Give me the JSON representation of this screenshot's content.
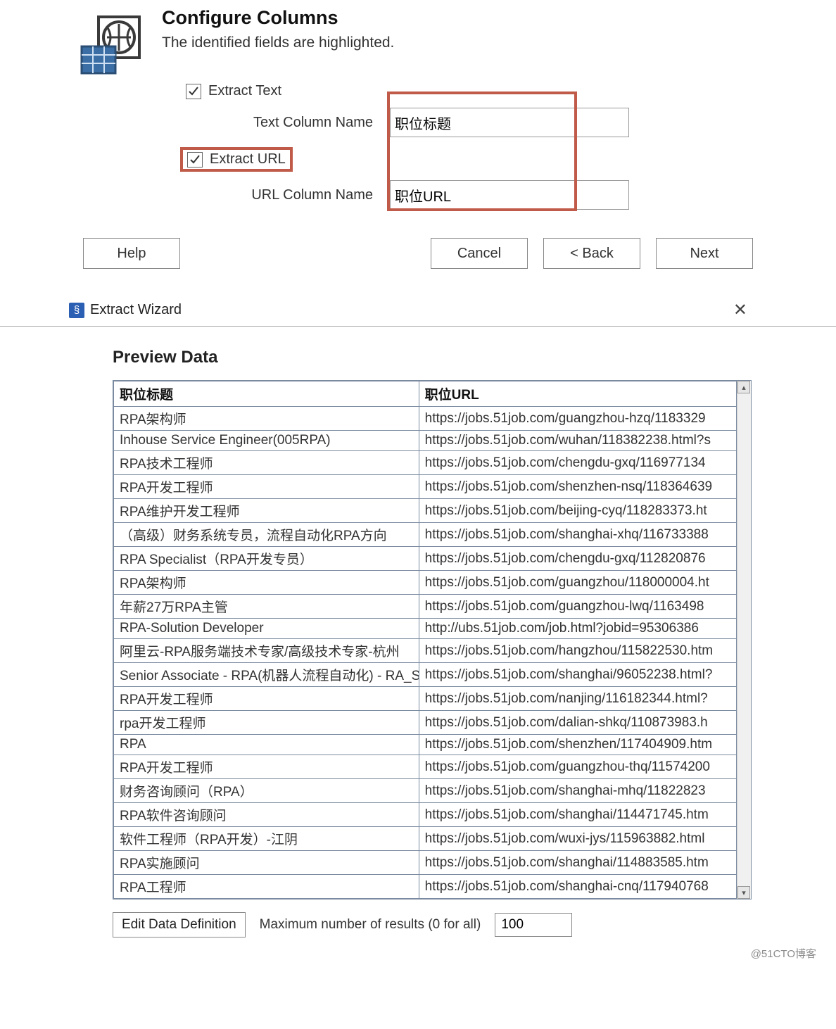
{
  "header": {
    "title": "Configure Columns",
    "subtitle": "The identified fields are highlighted."
  },
  "form": {
    "extract_text_label": "Extract Text",
    "extract_text_checked": true,
    "text_col_label": "Text Column Name",
    "text_col_value": "职位标题",
    "extract_url_label": "Extract URL",
    "extract_url_checked": true,
    "url_col_label": "URL Column Name",
    "url_col_value": "职位URL"
  },
  "buttons": {
    "help": "Help",
    "cancel": "Cancel",
    "back": "< Back",
    "next": "Next"
  },
  "wizard": {
    "title": "Extract Wizard"
  },
  "preview": {
    "heading": "Preview Data",
    "columns": [
      "职位标题",
      "职位URL"
    ],
    "rows": [
      [
        "RPA架构师",
        "https://jobs.51job.com/guangzhou-hzq/1183329"
      ],
      [
        "Inhouse Service Engineer(005RPA)",
        "https://jobs.51job.com/wuhan/118382238.html?s"
      ],
      [
        "RPA技术工程师",
        "https://jobs.51job.com/chengdu-gxq/116977134"
      ],
      [
        "RPA开发工程师",
        "https://jobs.51job.com/shenzhen-nsq/118364639"
      ],
      [
        "RPA维护开发工程师",
        "https://jobs.51job.com/beijing-cyq/118283373.ht"
      ],
      [
        "（高级）财务系统专员，流程自动化RPA方向",
        "https://jobs.51job.com/shanghai-xhq/116733388"
      ],
      [
        "RPA Specialist（RPA开发专员）",
        "https://jobs.51job.com/chengdu-gxq/112820876"
      ],
      [
        "RPA架构师",
        "https://jobs.51job.com/guangzhou/118000004.ht"
      ],
      [
        "年薪27万RPA主管",
        "https://jobs.51job.com/guangzhou-lwq/1163498"
      ],
      [
        "RPA-Solution Developer",
        "http://ubs.51job.com/job.html?jobid=95306386"
      ],
      [
        "阿里云-RPA服务端技术专家/高级技术专家-杭州",
        "https://jobs.51job.com/hangzhou/115822530.htm"
      ],
      [
        "Senior Associate - RPA(机器人流程自动化) - RA_SI",
        "https://jobs.51job.com/shanghai/96052238.html?"
      ],
      [
        "RPA开发工程师",
        "https://jobs.51job.com/nanjing/116182344.html?"
      ],
      [
        "rpa开发工程师",
        "https://jobs.51job.com/dalian-shkq/110873983.h"
      ],
      [
        "RPA",
        "https://jobs.51job.com/shenzhen/117404909.htm"
      ],
      [
        "RPA开发工程师",
        "https://jobs.51job.com/guangzhou-thq/11574200"
      ],
      [
        "财务咨询顾问（RPA）",
        "https://jobs.51job.com/shanghai-mhq/11822823"
      ],
      [
        "RPA软件咨询顾问",
        "https://jobs.51job.com/shanghai/114471745.htm"
      ],
      [
        "软件工程师（RPA开发）-江阴",
        "https://jobs.51job.com/wuxi-jys/115963882.html"
      ],
      [
        "RPA实施顾问",
        "https://jobs.51job.com/shanghai/114883585.htm"
      ],
      [
        "RPA工程师",
        "https://jobs.51job.com/shanghai-cnq/117940768"
      ]
    ]
  },
  "footer": {
    "edit_btn": "Edit Data Definition",
    "max_label": "Maximum number of results (0 for all)",
    "max_value": "100"
  },
  "watermark": "@51CTO博客",
  "colors": {
    "highlight_border": "#c05b49",
    "table_border": "#7a8aa0",
    "text": "#333333",
    "bg": "#ffffff"
  }
}
